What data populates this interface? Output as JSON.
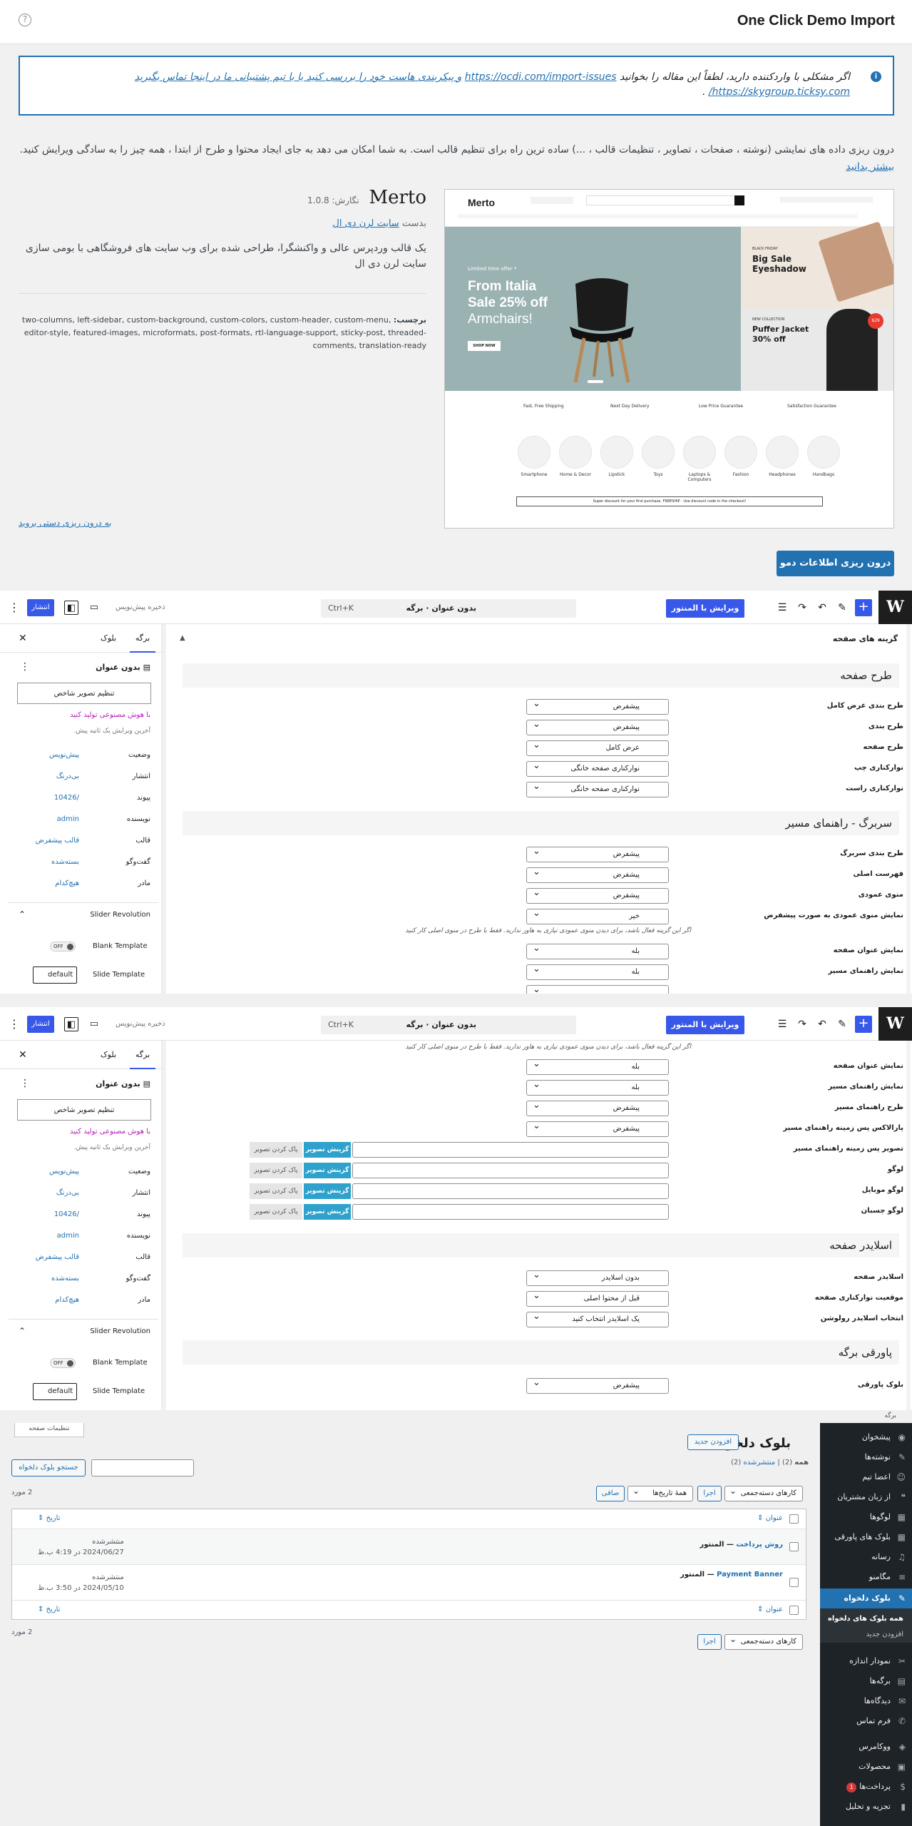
{
  "demo_import": {
    "title": "One Click Demo Import",
    "help_icon": "question-circle-icon",
    "notice": {
      "text": "اگر مشکلی با واردکننده دارید، لطفاً این مقاله را بخوانید",
      "link1": "https://ocdi.com/import-issues",
      "text2": "و پیکربندی هاست خود را بررسی کنید یا با تیم پشتیبانی ما در اینجا تماس بگیرید",
      "link2": "https://skygroup.ticksy.com/",
      "end": "."
    },
    "intro": "درون ریزی داده های نمایشی (نوشته ، صفحات ، تصاویر ، تنظیمات قالب ، ...) ساده ترین راه برای تنظیم قالب است. به شما امکان می دهد به جای ایجاد محتوا و طرح از ابتدا ، همه چیز را به سادگی ویرایش کنید.",
    "intro_link": "بیشتر بدانید",
    "theme": {
      "name": "Merto",
      "version": "نگارش: 1.0.8",
      "author_prefix": "بدست",
      "author": "سایت لرن دی ال",
      "description": "یک قالب وردپرس عالی و واکنشگرا، طراحی شده برای وب سایت های فروشگاهی با بومی سازی سایت لرن دی ال",
      "tags_label": "برچسب:",
      "tags": "two-columns, left-sidebar, custom-background, custom-colors, custom-header, custom-menu, editor-style, featured-images, microformats, post-formats, rtl-language-support, sticky-post, threaded-comments, translation-ready"
    },
    "manual_link": "به درون ریزی دستی بروید",
    "import_button": "درون ریزی اطلاعات دمو",
    "preview": {
      "logo": "Merto",
      "hero_tag": "Limited time offer *",
      "hero_line1": "From Italia",
      "hero_line2": "Sale 25% off",
      "hero_line3": "Armchairs!",
      "hero_btn": "SHOP NOW",
      "side1_tag": "BLACK FRIDAY",
      "side1_title1": "Big Sale",
      "side1_title2": "Eyeshadow",
      "side2_tag": "NEW COLLECTION",
      "side2_title1": "Puffer Jacket",
      "side2_title2": "30% off",
      "side2_badge": "$29",
      "features": [
        "Fast, Free Shipping",
        "Next Day Delivery",
        "Low Price Guarantee",
        "Satisfaction Guarantee"
      ],
      "categories": [
        "Smartphone",
        "Home & Decor",
        "Lipstick",
        "Toys",
        "Laptops & Computers",
        "Fashion",
        "Headphones",
        "Handbags"
      ],
      "discount_text": "Super discount for your first purchase. FREESHIP · Use discount code in the checkout!"
    }
  },
  "editor": {
    "topbar": {
      "elementor_button": "ویرایش با المنتور",
      "doc_title": "بدون عنوان · برگه",
      "shortcut": "Ctrl+K",
      "save_draft": "ذخیره پیش‌نویس",
      "publish": "انتشار"
    },
    "sidebar": {
      "tab_page": "برگه",
      "tab_block": "بلوک",
      "title": "بدون عنوان",
      "featured_image": "تنظیم تصویر شاخص",
      "ai_link": "با هوش مصنوعی تولید کنید",
      "last_edit": "آخرین ویرایش یک ثانیه پیش.",
      "rows": [
        {
          "k": "وضعیت",
          "v": "پیش‌نویس"
        },
        {
          "k": "انتشار",
          "v": "بی‌درنگ"
        },
        {
          "k": "پیوند",
          "v": "/10426"
        },
        {
          "k": "نویسنده",
          "v": "admin"
        },
        {
          "k": "قالب",
          "v": "قالب پیشفرض"
        },
        {
          "k": "گفت‌وگو",
          "v": "بسته‌شده"
        },
        {
          "k": "مادر",
          "v": "هیچ‌کدام"
        }
      ],
      "revolution_title": "Slider Revolution",
      "blank_template": "Blank Template",
      "toggle": "OFF",
      "slide_template": "Slide Template",
      "slide_value": "default"
    },
    "options_heading": "گزینه های صفحه",
    "section_layout": "طرح صفحه",
    "section_breadcrumb": "سربرگ - راهنمای مسیر",
    "section_slider": "اسلایدر صفحه",
    "section_footer": "پاورقی برگه",
    "fields_layout": [
      {
        "label": "طرح بندی عرض کامل",
        "value": "پیشفرض"
      },
      {
        "label": "طرح بندی",
        "value": "پیشفرض"
      },
      {
        "label": "طرح صفحه",
        "value": "عرض کامل"
      },
      {
        "label": "نوارکناری چپ",
        "value": "نوارکناری صفحه خانگی"
      },
      {
        "label": "نوارکناری راست",
        "value": "نوارکناری صفحه خانگی"
      }
    ],
    "fields_breadcrumb": [
      {
        "label": "طرح بندی سربرگ",
        "value": "پیشفرض"
      },
      {
        "label": "فهرست اصلی",
        "value": "پیشفرض"
      },
      {
        "label": "منوی عمودی",
        "value": "پیشفرض"
      },
      {
        "label": "نمایش منوی عمودی به صورت پیشفرض",
        "value": "خیر"
      }
    ],
    "vertical_hint": "اگر این گزینه فعال باشد، برای دیدن منوی عمودی نیازی به هاور ندارید. فقط با طرح در منوی اصلی کار کنید",
    "fields_title": [
      {
        "label": "نمایش عنوان صفحه",
        "value": "بله"
      },
      {
        "label": "نمایش راهنمای مسیر",
        "value": "بله"
      },
      {
        "label": "طرح راهنمای مسیر",
        "value": "پیشفرض"
      },
      {
        "label": "پارالاکس پس زمینه راهنمای مسیر",
        "value": "پیشفرض"
      }
    ],
    "image_fields": [
      "تصویر پس زمینه راهنمای مسیر",
      "لوگو",
      "لوگو موبایل",
      "لوگو چسبان"
    ],
    "pick_image": "گزینش تصویر",
    "clear_image": "پاک کردن تصویر",
    "fields_slider": [
      {
        "label": "اسلایدر صفحه",
        "value": "بدون اسلایدر"
      },
      {
        "label": "موقعیت نوارکناری صفحه",
        "value": "قبل از محتوا اصلی"
      },
      {
        "label": "انتخاب اسلایدر رولوشن",
        "value": "یک اسلایدر انتخاب کنید"
      }
    ],
    "fields_footer": [
      {
        "label": "بلوک پاورقی",
        "value": "پیشفرض"
      }
    ],
    "footer_crumb": "برگه"
  },
  "reusable": {
    "screen_options": "تنظیمات صفحه",
    "title": "بلوک دلخواه",
    "add_new": "افزودن جدید",
    "filter_all": "همه",
    "filter_all_count": "(2)",
    "filter_sep": "|",
    "filter_published": "منتشرشده",
    "filter_published_count": "(2)",
    "search_button": "جستجو بلوک دلخواه",
    "bulk_actions": "کارهای دسته‌جمعی",
    "apply": "اجرا",
    "all_dates": "همهٔ تاریخ‌ها",
    "filter_btn": "صافی",
    "count": "2 مورد",
    "col_title": "عنوان",
    "col_date": "تاریخ",
    "rows": [
      {
        "title": "روش پرداخت",
        "suffix": "— المنتور",
        "status": "منتشرشده",
        "date": "2024/06/27 در 4:19 ب.ظ"
      },
      {
        "title": "Payment Banner",
        "suffix": "— المنتور",
        "status": "منتشرشده",
        "date": "2024/05/10 در 3:50 ب.ظ"
      }
    ],
    "menu": [
      {
        "label": "پیشخوان",
        "icon": "dashboard-icon"
      },
      {
        "label": "نوشته‌ها",
        "icon": "pin-icon"
      },
      {
        "label": "اعضا تیم",
        "icon": "team-icon"
      },
      {
        "label": "از زبان مشتریان",
        "icon": "quote-icon"
      },
      {
        "label": "لوگوها",
        "icon": "grid-icon"
      },
      {
        "label": "بلوک های پاورقی",
        "icon": "grid-icon"
      },
      {
        "label": "رسانه",
        "icon": "media-icon"
      },
      {
        "label": "مگامنو",
        "icon": "menu-icon"
      },
      {
        "label": "بلوک دلخواه",
        "icon": "pin-icon"
      }
    ],
    "submenu": [
      "همه بلوک های دلخواه",
      "افزودن جدید"
    ],
    "menu2": [
      {
        "label": "نمودار اندازه",
        "icon": "size-icon"
      },
      {
        "label": "برگه‌ها",
        "icon": "pages-icon"
      },
      {
        "label": "دیدگاه‌ها",
        "icon": "comment-icon"
      },
      {
        "label": "فرم تماس",
        "icon": "mail-icon"
      },
      {
        "label": "ووکامرس",
        "icon": "woo-icon"
      },
      {
        "label": "محصولات",
        "icon": "box-icon"
      },
      {
        "label": "پرداخت‌ها",
        "icon": "payment-icon",
        "badge": "1"
      },
      {
        "label": "تجزیه و تحلیل",
        "icon": "chart-icon"
      }
    ]
  }
}
